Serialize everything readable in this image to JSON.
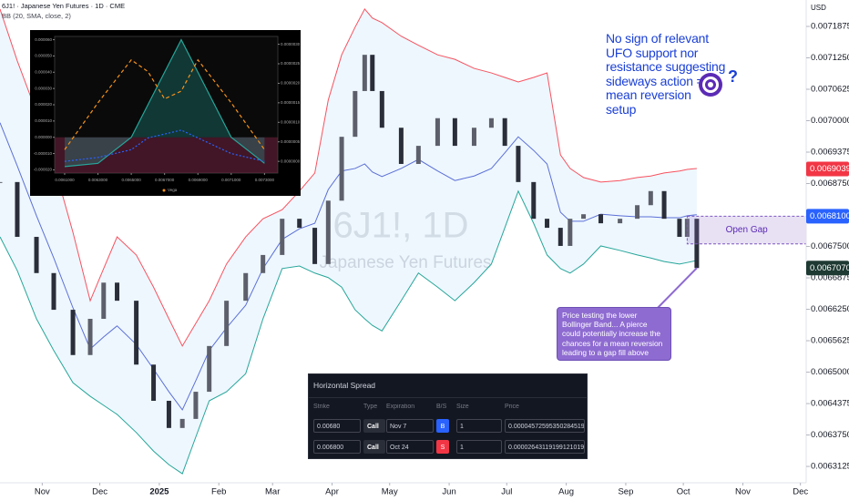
{
  "chart_data": [
    {
      "type": "candlestick",
      "title": "6J1! · Japanese Yen Futures · 1D · CME",
      "indicator": "BB (20, SMA, close, 2)",
      "currency": "USD",
      "watermark_symbol": "6J1!, 1D",
      "watermark_name": "Japanese Yen Futures",
      "up_color": "#5d606b",
      "down_color": "#2a2e39",
      "x": [
        9,
        18,
        28,
        37,
        47,
        56,
        63,
        70,
        80,
        89,
        97,
        104,
        111,
        118,
        127,
        137,
        146,
        156,
        165,
        173,
        180,
        187,
        194,
        199,
        203,
        208,
        218,
        227,
        237,
        246,
        256,
        265,
        272,
        279,
        287,
        294,
        301,
        306,
        313,
        322,
        332,
        341,
        348,
        355,
        363,
        367,
        372
      ],
      "close": [
        0.006878,
        0.006769,
        0.006697,
        0.006624,
        0.006534,
        0.006606,
        0.006678,
        0.006642,
        0.006515,
        0.006443,
        0.006389,
        0.006407,
        0.006461,
        0.006552,
        0.006642,
        0.006697,
        0.006733,
        0.006805,
        0.006787,
        0.006715,
        0.006841,
        0.006968,
        0.007059,
        0.007131,
        0.007059,
        0.006986,
        0.006914,
        0.00695,
        0.007005,
        0.00695,
        0.006986,
        0.007005,
        0.00695,
        0.006878,
        0.006805,
        0.006787,
        0.006751,
        0.006805,
        0.006814,
        0.006796,
        0.006805,
        0.006832,
        0.00686,
        0.006805,
        0.006769,
        0.006805,
        0.006707
      ],
      "series": [
        {
          "color": "#f7525f",
          "values": [
            0.007222,
            0.007119,
            0.007017,
            0.006914,
            0.006778,
            0.006642,
            0.006706,
            0.006769,
            0.006733,
            0.006669,
            0.006606,
            0.006552,
            0.006597,
            0.006642,
            0.006715,
            0.006769,
            0.006805,
            0.006823,
            0.00686,
            0.006896,
            0.007041,
            0.007131,
            0.007186,
            0.007222,
            0.007204,
            0.007195,
            0.007168,
            0.00715,
            0.007131,
            0.007122,
            0.007104,
            0.007095,
            0.007086,
            0.007077,
            0.007086,
            0.007095,
            0.006932,
            0.006905,
            0.006887,
            0.006878,
            0.006881,
            0.006887,
            0.00689,
            0.006896,
            0.0069,
            0.006903,
            0.006905
          ]
        },
        {
          "color": "#5b6fd6",
          "values": [
            0.006996,
            0.00691,
            0.006811,
            0.006727,
            0.006628,
            0.006546,
            0.00657,
            0.006592,
            0.006555,
            0.006506,
            0.006461,
            0.006425,
            0.006483,
            0.006543,
            0.006588,
            0.006633,
            0.006706,
            0.006764,
            0.006785,
            0.006796,
            0.006863,
            0.0069,
            0.006905,
            0.006914,
            0.006898,
            0.006889,
            0.006905,
            0.006923,
            0.0069,
            0.006881,
            0.00689,
            0.006905,
            0.006936,
            0.006968,
            0.006941,
            0.006914,
            0.006818,
            0.0068,
            0.0068,
            0.006814,
            0.006811,
            0.006809,
            0.006809,
            0.006807,
            0.006807,
            0.006811,
            0.006813
          ]
        },
        {
          "color": "#26a69a",
          "values": [
            0.006769,
            0.006702,
            0.006606,
            0.006543,
            0.006479,
            0.006452,
            0.006434,
            0.006416,
            0.00638,
            0.006343,
            0.006316,
            0.006298,
            0.006371,
            0.006443,
            0.006461,
            0.006497,
            0.006606,
            0.006706,
            0.006711,
            0.006697,
            0.006688,
            0.006669,
            0.006624,
            0.006606,
            0.006593,
            0.006582,
            0.006642,
            0.006697,
            0.006669,
            0.006642,
            0.006678,
            0.006715,
            0.006787,
            0.00686,
            0.006796,
            0.006733,
            0.006706,
            0.006697,
            0.006715,
            0.006751,
            0.006742,
            0.006733,
            0.006727,
            0.00672,
            0.006715,
            0.006718,
            0.006722
          ]
        }
      ],
      "band_fill": "rgba(33,150,243,0.08)",
      "xlim": [
        9,
        429
      ],
      "ylim": [
        0.00628,
        0.00724
      ],
      "xticks": [
        {
          "value": 31,
          "label": "Nov"
        },
        {
          "value": 61,
          "label": "Dec"
        },
        {
          "value": 92,
          "label": "2025"
        },
        {
          "value": 123,
          "label": "Feb"
        },
        {
          "value": 151,
          "label": "Mar"
        },
        {
          "value": 182,
          "label": "Apr"
        },
        {
          "value": 212,
          "label": "May"
        },
        {
          "value": 243,
          "label": "Jun"
        },
        {
          "value": 273,
          "label": "Jul"
        },
        {
          "value": 304,
          "label": "Aug"
        },
        {
          "value": 335,
          "label": "Sep"
        },
        {
          "value": 365,
          "label": "Oct"
        },
        {
          "value": 396,
          "label": "Nov"
        },
        {
          "value": 426,
          "label": "Dec"
        }
      ],
      "yticks": [
        0.0071875,
        {
          "value": 0.007125,
          "label": "0.0071250"
        },
        0.0070625,
        {
          "value": 0.007,
          "label": "0.0070000"
        },
        0.0069375,
        {
          "value": 0.006875,
          "label": "0.0068750"
        },
        {
          "value": 0.00675,
          "label": "0.0067500"
        },
        0.0066875,
        {
          "value": 0.006625,
          "label": "0.0066250"
        },
        0.0065625,
        {
          "value": 0.0065,
          "label": "0.0065000"
        },
        0.0064375,
        {
          "value": 0.006375,
          "label": "0.0063750"
        },
        0.0063125
      ],
      "price_labels": [
        {
          "value": 0.0069039,
          "label": "0.0069039",
          "color": "#f23645"
        },
        {
          "value": 0.00681,
          "label": "0.0068100",
          "color": "#2962ff"
        },
        {
          "value": 0.006707,
          "label": "0.0067070",
          "color": "#1e3a32"
        }
      ],
      "gap": {
        "label": "Open Gap",
        "start": 367,
        "top": 0.00681,
        "bottom": 0.006755
      },
      "note_lines": [
        "No sign of relevant",
        "UFO support nor",
        "resistance suggesting",
        "sideways action =",
        "mean reversion",
        "setup"
      ],
      "note_mark": "?",
      "callout_lines": [
        "Price testing the lower",
        "Bollinger Band... A pierce",
        "could potentially increase the",
        "chances for a mean reversion",
        "leading to a gap fill above"
      ]
    },
    {
      "type": "line",
      "x": [
        0.0061,
        0.0063,
        0.0065,
        0.0066,
        0.0067,
        0.0068,
        0.0069,
        0.0071,
        0.0073
      ],
      "xlim": [
        0.00604,
        0.00738
      ],
      "ylim": [
        -2.2e-05,
        6.2e-05
      ],
      "y2lim": [
        -3e-07,
        3.2e-06
      ],
      "xticks": [
        {
          "value": 0.0061,
          "label": "0.0061000"
        },
        {
          "value": 0.0063,
          "label": "0.0063000"
        },
        {
          "value": 0.0065,
          "label": "0.0065000"
        },
        {
          "value": 0.0067,
          "label": "0.0067000"
        },
        {
          "value": 0.0069,
          "label": "0.0069000"
        },
        {
          "value": 0.0071,
          "label": "0.0071000"
        },
        {
          "value": 0.0073,
          "label": "0.0073000"
        }
      ],
      "yticks": [
        {
          "value": 6e-05,
          "label": "0.000060"
        },
        {
          "value": 5e-05,
          "label": "0.000050"
        },
        {
          "value": 4e-05,
          "label": "0.000040"
        },
        {
          "value": 3e-05,
          "label": "0.000030"
        },
        {
          "value": 2e-05,
          "label": "0.000020"
        },
        {
          "value": 1e-05,
          "label": "0.000010"
        },
        {
          "value": 0,
          "label": "0.000000"
        },
        {
          "value": -1e-05,
          "label": "-0.000010"
        },
        {
          "value": -2e-05,
          "label": "-0.000020"
        }
      ],
      "y2ticks": [
        {
          "value": 3e-06,
          "label": "0.0000030"
        },
        {
          "value": 2.5e-06,
          "label": "0.0000025"
        },
        {
          "value": 2e-06,
          "label": "0.0000020"
        },
        {
          "value": 1.5e-06,
          "label": "0.0000015"
        },
        {
          "value": 1e-06,
          "label": "0.0000010"
        },
        {
          "value": 5e-07,
          "label": "0.0000005"
        },
        {
          "value": 0,
          "label": "0.0000000"
        }
      ],
      "series": [
        {
          "color": "#26a69a",
          "fill": true,
          "values": [
            -1.8e-05,
            -1.6e-05,
            0,
            2e-05,
            4e-05,
            6e-05,
            4e-05,
            0,
            -1.6e-05
          ]
        },
        {
          "name": "Vega",
          "color": "#f7931a",
          "dash": "4,3",
          "axis": "y2",
          "values": [
            3e-07,
            1.5e-06,
            2.6e-06,
            2.3e-06,
            1.6e-06,
            1.8e-06,
            2.6e-06,
            1.5e-06,
            3e-07
          ]
        },
        {
          "color": "#2962ff",
          "dash": "2,2",
          "axis": "y2",
          "values": [
            0,
            1e-07,
            3e-07,
            6e-07,
            7e-07,
            8e-07,
            6e-07,
            2e-07,
            0
          ]
        }
      ],
      "legend": "bottom"
    }
  ],
  "table": {
    "title": "Horizontal Spread",
    "columns": [
      "Strike",
      "Type",
      "Expiration",
      "B/S",
      "Size",
      "Price"
    ],
    "rows": [
      [
        "0.00680",
        "Call",
        "Nov 7",
        "B",
        "1",
        "0.00004572595350284519"
      ],
      [
        "0.006800",
        "Call",
        "Oct 24",
        "S",
        "1",
        "0.000026431191991210193"
      ]
    ]
  }
}
